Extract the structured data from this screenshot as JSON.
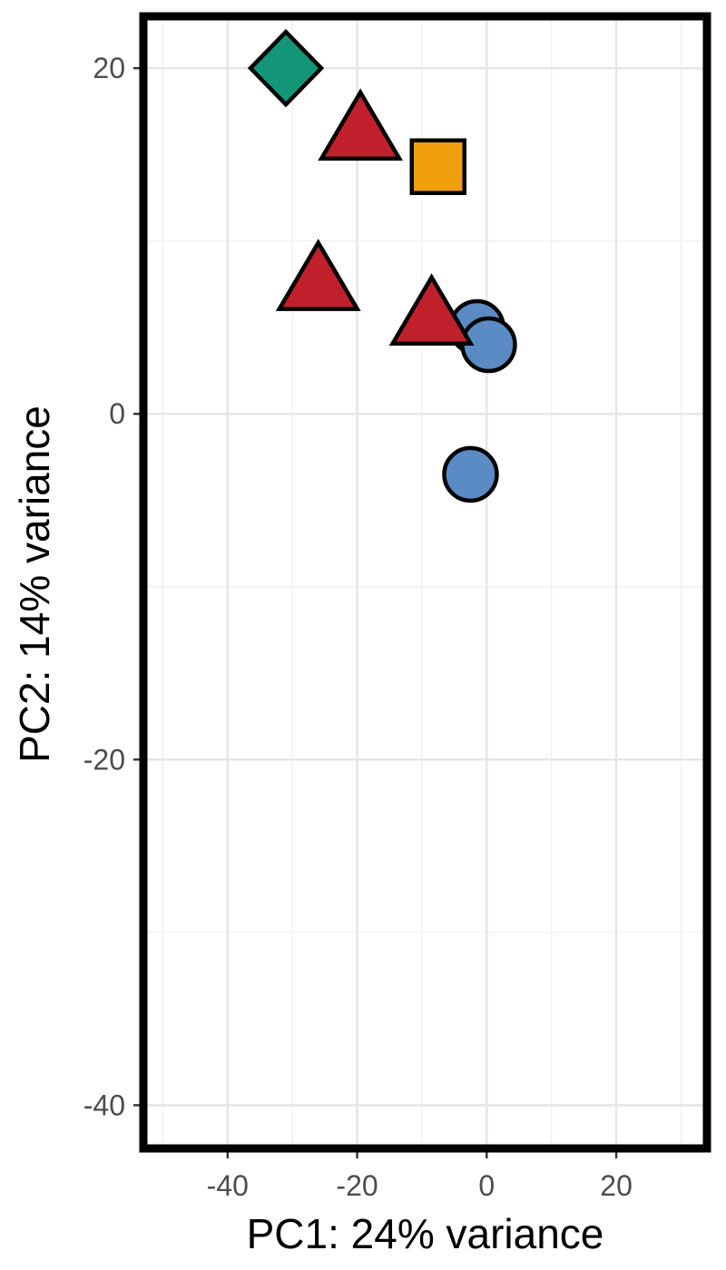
{
  "chart_data": {
    "type": "scatter",
    "title": "",
    "xlabel": "PC1: 24% variance",
    "ylabel": "PC2: 14% variance",
    "xlim": [
      -53,
      34
    ],
    "ylim": [
      -42.5,
      23
    ],
    "x_ticks": [
      -40,
      -20,
      0,
      20
    ],
    "x_tick_labels": [
      "-40",
      "-20",
      "0",
      "20"
    ],
    "y_ticks": [
      -40,
      -20,
      0,
      20
    ],
    "y_tick_labels": [
      "-40",
      "-20",
      "0",
      "20"
    ],
    "x_minor_ticks": [
      -50,
      -30,
      -10,
      10,
      30
    ],
    "y_minor_ticks": [
      -30,
      -10,
      10
    ],
    "grid": true,
    "legend": "none",
    "series": [
      {
        "shape": "circle",
        "color": "#5B8BC4",
        "points": [
          {
            "x": -1.5,
            "y": 5
          },
          {
            "x": 0.3,
            "y": 4
          },
          {
            "x": -2.5,
            "y": -3.5
          }
        ]
      },
      {
        "shape": "triangle",
        "color": "#C0202C",
        "points": [
          {
            "x": -19.5,
            "y": 16.5
          },
          {
            "x": -26,
            "y": 7.8
          },
          {
            "x": -8.5,
            "y": 5.8
          }
        ]
      },
      {
        "shape": "square",
        "color": "#F0A00C",
        "points": [
          {
            "x": -7.5,
            "y": 14.3
          }
        ]
      },
      {
        "shape": "diamond",
        "color": "#139678",
        "points": [
          {
            "x": -31,
            "y": 20
          }
        ]
      }
    ]
  }
}
